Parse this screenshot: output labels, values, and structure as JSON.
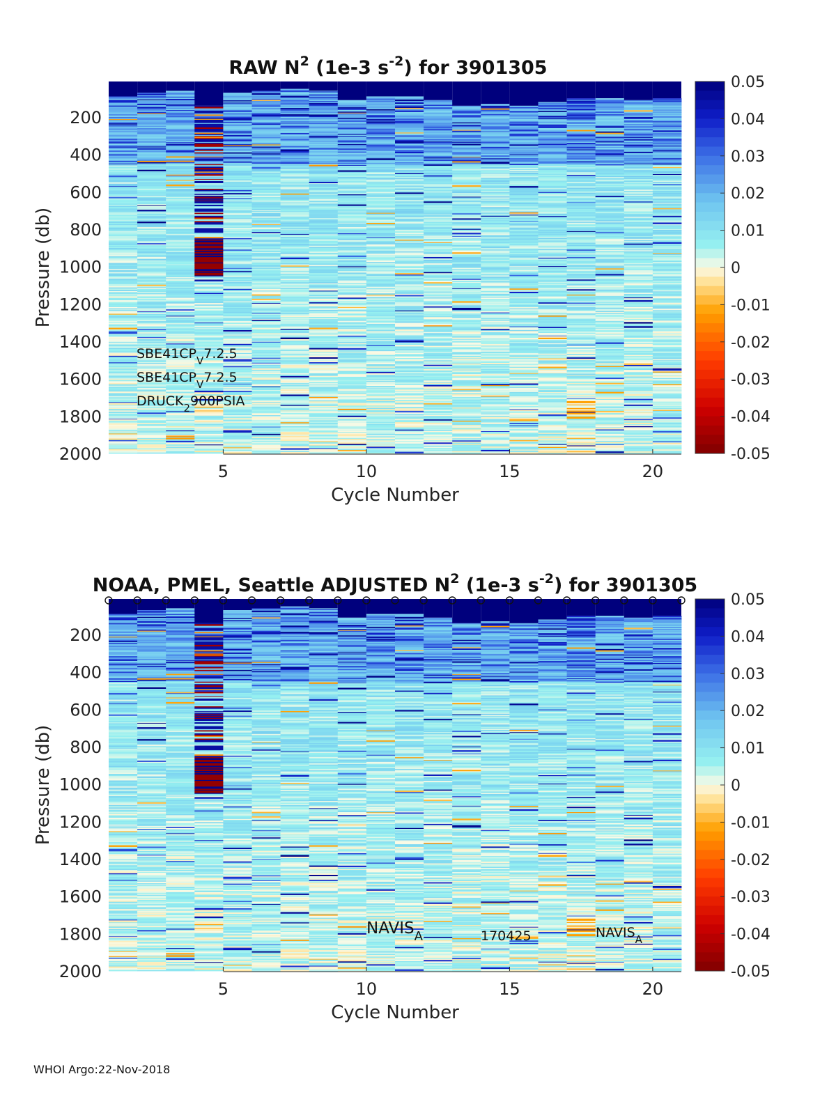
{
  "chart_data": [
    {
      "type": "heatmap",
      "title": {
        "prefix": "RAW N",
        "sup1": "2",
        "mid": " (1e-3 s",
        "sup2": "-2",
        "suffix": ") for 3901305"
      },
      "xlabel": "Cycle Number",
      "ylabel": "Pressure (db)",
      "xlim": [
        1,
        21
      ],
      "ylim": [
        2000,
        10
      ],
      "xticks": [
        "5",
        "10",
        "15",
        "20"
      ],
      "yticks": [
        "200",
        "400",
        "600",
        "800",
        "1000",
        "1200",
        "1400",
        "1600",
        "1800",
        "2000"
      ],
      "cycles": [
        1,
        2,
        3,
        4,
        5,
        6,
        7,
        8,
        9,
        10,
        11,
        12,
        13,
        14,
        15,
        16,
        17,
        18,
        19,
        20
      ],
      "clim": [
        -0.05,
        0.05
      ],
      "colorbar_ticks": [
        "0.05",
        "0.04",
        "0.03",
        "0.02",
        "0.01",
        "0",
        "-0.01",
        "-0.02",
        "-0.03",
        "-0.04",
        "-0.05"
      ],
      "annotations": [
        {
          "base": "SBE41CP",
          "sub": "V",
          "tail": "7.2.5"
        },
        {
          "base": "SBE41CP",
          "sub": "V",
          "tail": "7.2.5"
        },
        {
          "base": "DRUCK",
          "sub": "2",
          "tail": "900PSIA"
        }
      ],
      "features": {
        "surface_layer_max_n2": 0.05,
        "surface_layer_bottom_db": [
          90,
          70,
          60,
          140,
          70,
          60,
          50,
          60,
          110,
          90,
          90,
          110,
          140,
          130,
          140,
          120,
          100,
          100,
          110,
          100
        ],
        "cycle4_negative_band_db": [
          850,
          1050
        ],
        "typical_background_n2": 0.01
      }
    },
    {
      "type": "heatmap",
      "title": {
        "prefix": "NOAA, PMEL, Seattle  ADJUSTED N",
        "sup1": "2",
        "mid": " (1e-3 s",
        "sup2": "-2",
        "suffix": ") for 3901305"
      },
      "xlabel": "Cycle Number",
      "ylabel": "Pressure (db)",
      "xlim": [
        1,
        21
      ],
      "ylim": [
        2000,
        10
      ],
      "xticks": [
        "5",
        "10",
        "15",
        "20"
      ],
      "yticks": [
        "200",
        "400",
        "600",
        "800",
        "1000",
        "1200",
        "1400",
        "1600",
        "1800",
        "2000"
      ],
      "cycles": [
        1,
        2,
        3,
        4,
        5,
        6,
        7,
        8,
        9,
        10,
        11,
        12,
        13,
        14,
        15,
        16,
        17,
        18,
        19,
        20
      ],
      "marker_cycles": [
        1,
        2,
        3,
        4,
        5,
        6,
        7,
        8,
        9,
        10,
        11,
        12,
        13,
        14,
        15,
        16,
        17,
        18,
        19,
        20,
        21
      ],
      "marker_symbol": "o",
      "clim": [
        -0.05,
        0.05
      ],
      "colorbar_ticks": [
        "0.05",
        "0.04",
        "0.03",
        "0.02",
        "0.01",
        "0",
        "-0.01",
        "-0.02",
        "-0.03",
        "-0.04",
        "-0.05"
      ],
      "annotations": [
        {
          "base": "NAVIS",
          "sub": "A",
          "tail": ""
        },
        {
          "base": "170425",
          "sub": "",
          "tail": ""
        },
        {
          "base": "NAVIS",
          "sub": "A",
          "tail": ""
        }
      ],
      "features": {
        "surface_layer_max_n2": 0.05,
        "surface_layer_bottom_db": [
          90,
          70,
          60,
          140,
          70,
          60,
          50,
          60,
          110,
          90,
          90,
          110,
          140,
          130,
          140,
          120,
          100,
          100,
          110,
          100
        ],
        "cycle4_negative_band_db": [
          850,
          1050
        ],
        "typical_background_n2": 0.01
      }
    }
  ],
  "footer": "WHOI Argo:22-Nov-2018"
}
